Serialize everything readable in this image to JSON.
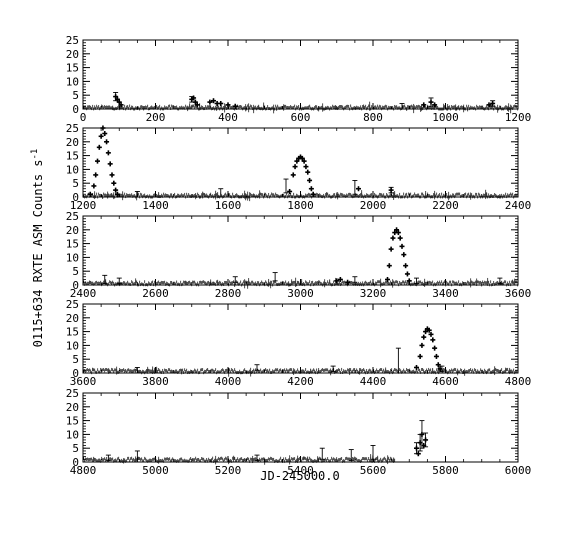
{
  "figure": {
    "xlabel": "JD-245000.0",
    "ylabel": "0115+634 RXTE ASM Counts s",
    "ylabel_superscript": "-1"
  },
  "chart_data": [
    {
      "type": "scatter",
      "xlim": [
        0,
        1200
      ],
      "ylim": [
        0,
        25
      ],
      "xticks": [
        0,
        200,
        400,
        600,
        800,
        1000,
        1200
      ],
      "yticks": [
        0,
        5,
        10,
        15,
        20,
        25
      ],
      "baseline": 0.5,
      "points": [
        [
          90,
          4.5
        ],
        [
          95,
          3.5
        ],
        [
          100,
          2.5
        ],
        [
          105,
          1.5
        ],
        [
          300,
          3.5
        ],
        [
          305,
          4.0
        ],
        [
          310,
          2.5
        ],
        [
          315,
          1.5
        ],
        [
          350,
          2.5
        ],
        [
          360,
          3.0
        ],
        [
          370,
          2.0
        ],
        [
          380,
          2.0
        ],
        [
          400,
          1.5
        ],
        [
          420,
          1.0
        ],
        [
          940,
          1.5
        ],
        [
          960,
          2.5
        ],
        [
          970,
          1.5
        ],
        [
          1120,
          1.5
        ],
        [
          1130,
          2.0
        ]
      ],
      "errorbars": [
        [
          90,
          4.5,
          1.5
        ],
        [
          300,
          3.5,
          1.0
        ],
        [
          960,
          2.5,
          1.5
        ],
        [
          1130,
          2.0,
          1.0
        ],
        [
          880,
          1.0,
          1.0
        ]
      ]
    },
    {
      "type": "scatter",
      "xlim": [
        1200,
        2400
      ],
      "ylim": [
        0,
        25
      ],
      "xticks": [
        1200,
        1400,
        1600,
        1800,
        2000,
        2200,
        2400
      ],
      "yticks": [
        0,
        5,
        10,
        15,
        20,
        25
      ],
      "baseline": 0.5,
      "points": [
        [
          1220,
          1.0
        ],
        [
          1230,
          4.0
        ],
        [
          1235,
          8.0
        ],
        [
          1240,
          13.0
        ],
        [
          1245,
          18.0
        ],
        [
          1250,
          22.0
        ],
        [
          1255,
          25.0
        ],
        [
          1260,
          23.0
        ],
        [
          1265,
          20.0
        ],
        [
          1270,
          16.0
        ],
        [
          1275,
          12.0
        ],
        [
          1280,
          8.0
        ],
        [
          1285,
          5.0
        ],
        [
          1290,
          2.5
        ],
        [
          1295,
          1.0
        ],
        [
          1770,
          2.0
        ],
        [
          1780,
          8.0
        ],
        [
          1785,
          11.0
        ],
        [
          1790,
          13.0
        ],
        [
          1795,
          14.0
        ],
        [
          1800,
          14.5
        ],
        [
          1805,
          14.0
        ],
        [
          1810,
          13.0
        ],
        [
          1815,
          11.0
        ],
        [
          1820,
          9.0
        ],
        [
          1825,
          6.0
        ],
        [
          1830,
          3.0
        ],
        [
          1835,
          1.0
        ],
        [
          1960,
          3.0
        ],
        [
          2050,
          2.5
        ]
      ],
      "errorbars": [
        [
          1580,
          1.5,
          1.5
        ],
        [
          1760,
          4.0,
          2.5
        ],
        [
          1950,
          3.5,
          2.5
        ],
        [
          2050,
          2.5,
          1.0
        ],
        [
          1350,
          1.0,
          1.0
        ]
      ]
    },
    {
      "type": "scatter",
      "xlim": [
        2400,
        3600
      ],
      "ylim": [
        0,
        25
      ],
      "xticks": [
        2400,
        2600,
        2800,
        3000,
        3200,
        3400,
        3600
      ],
      "yticks": [
        0,
        5,
        10,
        15,
        20,
        25
      ],
      "baseline": 0.6,
      "points": [
        [
          3240,
          2.0
        ],
        [
          3245,
          7.0
        ],
        [
          3250,
          13.0
        ],
        [
          3255,
          17.0
        ],
        [
          3260,
          19.0
        ],
        [
          3265,
          20.0
        ],
        [
          3270,
          19.0
        ],
        [
          3275,
          17.0
        ],
        [
          3280,
          14.0
        ],
        [
          3285,
          11.0
        ],
        [
          3290,
          7.0
        ],
        [
          3295,
          4.0
        ],
        [
          3300,
          1.5
        ],
        [
          3100,
          1.5
        ],
        [
          3110,
          2.0
        ],
        [
          3130,
          1.0
        ]
      ],
      "errorbars": [
        [
          2460,
          2.0,
          1.5
        ],
        [
          2500,
          1.5,
          1.0
        ],
        [
          2820,
          2.0,
          1.0
        ],
        [
          2930,
          3.0,
          1.5
        ],
        [
          3150,
          2.0,
          1.0
        ],
        [
          3320,
          1.5,
          1.0
        ],
        [
          3550,
          1.5,
          1.0
        ]
      ]
    },
    {
      "type": "scatter",
      "xlim": [
        3600,
        4800
      ],
      "ylim": [
        0,
        25
      ],
      "xticks": [
        3600,
        3800,
        4000,
        4200,
        4400,
        4600,
        4800
      ],
      "yticks": [
        0,
        5,
        10,
        15,
        20,
        25
      ],
      "baseline": 0.7,
      "points": [
        [
          4520,
          2.0
        ],
        [
          4530,
          6.0
        ],
        [
          4535,
          10.0
        ],
        [
          4540,
          13.0
        ],
        [
          4545,
          15.0
        ],
        [
          4550,
          16.0
        ],
        [
          4555,
          15.5
        ],
        [
          4560,
          14.0
        ],
        [
          4565,
          12.0
        ],
        [
          4570,
          9.0
        ],
        [
          4575,
          6.0
        ],
        [
          4580,
          3.0
        ],
        [
          4585,
          1.5
        ]
      ],
      "errorbars": [
        [
          4080,
          2.0,
          1.0
        ],
        [
          4290,
          1.5,
          1.0
        ],
        [
          4470,
          4.5,
          4.5
        ],
        [
          4590,
          1.5,
          1.0
        ],
        [
          3750,
          1.0,
          1.0
        ]
      ]
    },
    {
      "type": "scatter",
      "xlim": [
        4800,
        6000
      ],
      "ylim": [
        0,
        25
      ],
      "xticks": [
        4800,
        5000,
        5200,
        5400,
        5600,
        5800,
        6000
      ],
      "yticks": [
        0,
        5,
        10,
        15,
        20,
        25
      ],
      "baseline": 0.8,
      "end": 5660,
      "points": [
        [
          5720,
          5.0
        ],
        [
          5725,
          3.0
        ],
        [
          5730,
          7.0
        ],
        [
          5735,
          10.0
        ],
        [
          5740,
          6.0
        ],
        [
          5745,
          8.0
        ]
      ],
      "errorbars": [
        [
          4870,
          1.5,
          1.0
        ],
        [
          4950,
          2.0,
          2.0
        ],
        [
          5280,
          1.5,
          1.0
        ],
        [
          5460,
          3.0,
          2.0
        ],
        [
          5540,
          2.5,
          2.0
        ],
        [
          5600,
          3.5,
          2.5
        ],
        [
          5720,
          5.0,
          2.0
        ],
        [
          5730,
          7.0,
          3.0
        ],
        [
          5735,
          10.0,
          5.0
        ],
        [
          5745,
          8.0,
          2.5
        ]
      ]
    }
  ]
}
